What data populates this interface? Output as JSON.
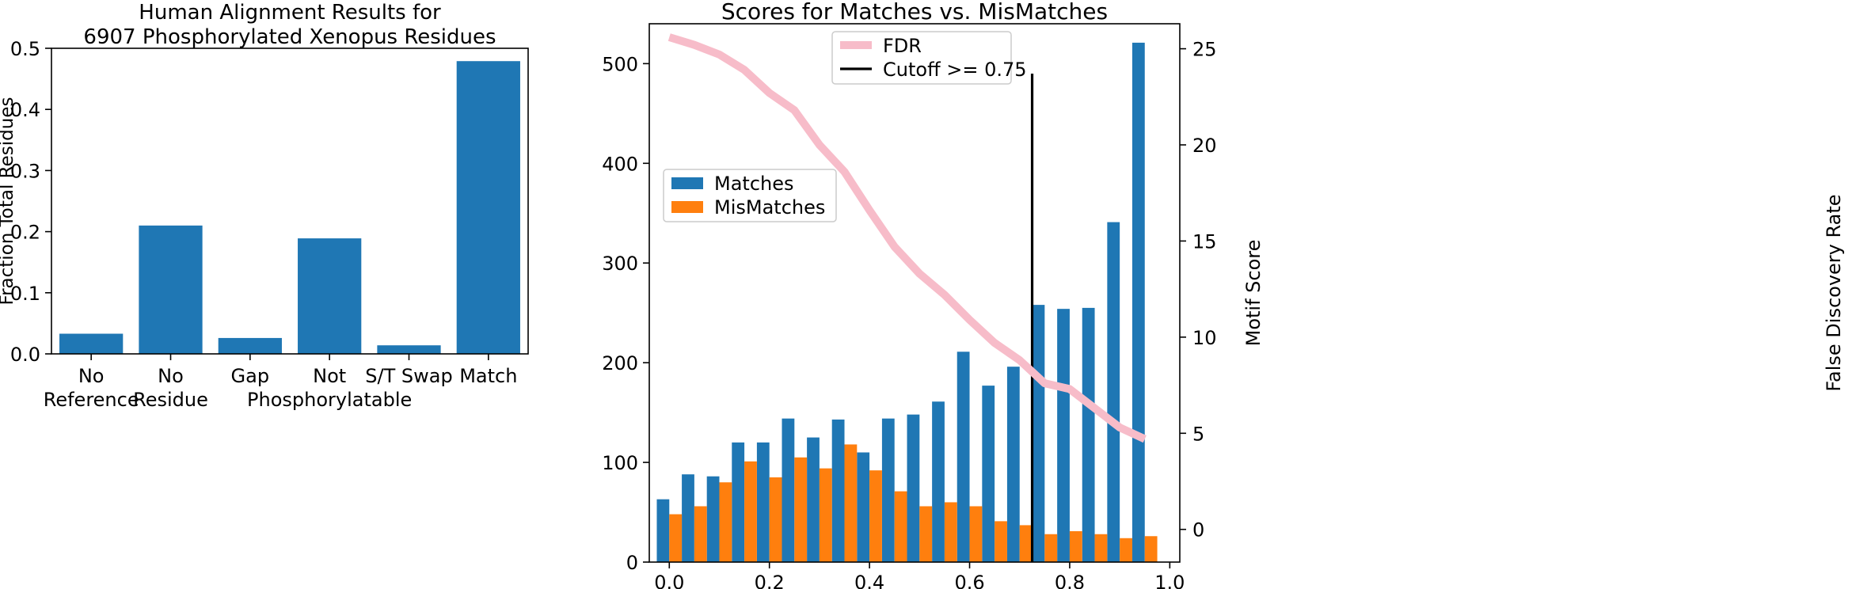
{
  "chart_data": [
    {
      "type": "bar",
      "title": "Human Alignment Results for\n6907 Phosphorylated Xenopus Residues",
      "xlabel": "",
      "ylabel": "Fraction Total Residues",
      "ylim": [
        0,
        0.5
      ],
      "yticks": [
        0.0,
        0.1,
        0.2,
        0.3,
        0.4,
        0.5
      ],
      "categories": [
        "No\nReference",
        "No\nResidue",
        "Gap",
        "Not\nPhosphorylatable",
        "S/T Swap",
        "Match"
      ],
      "values": [
        0.033,
        0.21,
        0.026,
        0.189,
        0.014,
        0.479
      ],
      "color": "#1f77b4"
    },
    {
      "type": "bar",
      "title": "Scores for Matches vs. MisMatches",
      "xlabel": "",
      "ylabel": "Motif Score",
      "y2label": "False Discovery Rate",
      "xlim": [
        -0.04,
        1.02
      ],
      "ylim": [
        0,
        540
      ],
      "y2lim": [
        -1.7,
        26.3
      ],
      "xticks": [
        0.0,
        0.2,
        0.4,
        0.6,
        0.8,
        1.0
      ],
      "yticks": [
        0,
        100,
        200,
        300,
        400,
        500
      ],
      "y2ticks": [
        0,
        5,
        10,
        15,
        20,
        25
      ],
      "bar_width": 0.025,
      "x": [
        0.0,
        0.05,
        0.1,
        0.15,
        0.2,
        0.25,
        0.3,
        0.35,
        0.4,
        0.45,
        0.5,
        0.55,
        0.6,
        0.65,
        0.7,
        0.75,
        0.8,
        0.85,
        0.9,
        0.95
      ],
      "series": [
        {
          "name": "Matches",
          "color": "#1f77b4",
          "offset": -0.0125,
          "values": [
            63,
            88,
            86,
            120,
            120,
            144,
            125,
            143,
            110,
            144,
            148,
            161,
            211,
            177,
            196,
            258,
            254,
            255,
            341,
            521
          ]
        },
        {
          "name": "MisMatches",
          "color": "#ff7f0e",
          "offset": 0.0125,
          "values": [
            48,
            56,
            80,
            101,
            85,
            105,
            94,
            118,
            92,
            71,
            56,
            60,
            56,
            41,
            37,
            28,
            31,
            28,
            24,
            26
          ]
        }
      ],
      "fdr": {
        "name": "FDR",
        "color": "#f7bcc9",
        "x": [
          0.0,
          0.05,
          0.1,
          0.15,
          0.2,
          0.25,
          0.3,
          0.35,
          0.4,
          0.45,
          0.5,
          0.55,
          0.6,
          0.65,
          0.7,
          0.725,
          0.75,
          0.8,
          0.85,
          0.9,
          0.95
        ],
        "values": [
          25.6,
          25.2,
          24.7,
          23.9,
          22.7,
          21.8,
          20.0,
          18.6,
          16.6,
          14.7,
          13.3,
          12.2,
          10.9,
          9.7,
          8.8,
          8.2,
          7.6,
          7.3,
          6.3,
          5.3,
          4.7
        ]
      },
      "cutoff": {
        "name": "Cutoff >= 0.75",
        "color": "#000000",
        "x": 0.725,
        "y_range": [
          0,
          490
        ]
      },
      "legends": [
        {
          "position": "upper-center",
          "entries": [
            "FDR",
            "Cutoff >= 0.75"
          ]
        },
        {
          "position": "center-left",
          "entries": [
            "Matches",
            "MisMatches"
          ]
        }
      ]
    }
  ]
}
